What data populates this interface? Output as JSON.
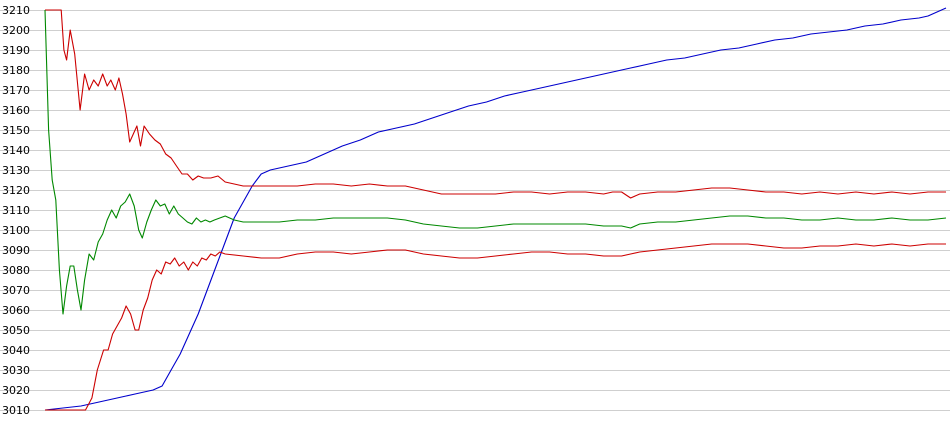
{
  "chart_data": {
    "type": "line",
    "title": "",
    "xlabel": "",
    "ylabel": "",
    "ylim": [
      3010,
      3210
    ],
    "xlim": [
      0,
      100
    ],
    "yticks": [
      3010,
      3020,
      3030,
      3040,
      3050,
      3060,
      3070,
      3080,
      3090,
      3100,
      3110,
      3120,
      3130,
      3140,
      3150,
      3160,
      3170,
      3180,
      3190,
      3200,
      3210
    ],
    "grid": "horizontal",
    "legend": "none",
    "series": [
      {
        "color": "#0000cc",
        "points": [
          [
            0,
            3010
          ],
          [
            2,
            3011
          ],
          [
            4,
            3012
          ],
          [
            6,
            3014
          ],
          [
            8,
            3016
          ],
          [
            9,
            3017
          ],
          [
            10,
            3018
          ],
          [
            11,
            3019
          ],
          [
            12,
            3020
          ],
          [
            13,
            3022
          ],
          [
            14,
            3030
          ],
          [
            15,
            3038
          ],
          [
            16,
            3048
          ],
          [
            17,
            3058
          ],
          [
            18,
            3070
          ],
          [
            19,
            3082
          ],
          [
            20,
            3094
          ],
          [
            21,
            3106
          ],
          [
            22,
            3114
          ],
          [
            23,
            3122
          ],
          [
            24,
            3128
          ],
          [
            25,
            3130
          ],
          [
            27,
            3132
          ],
          [
            29,
            3134
          ],
          [
            31,
            3138
          ],
          [
            33,
            3142
          ],
          [
            35,
            3145
          ],
          [
            37,
            3149
          ],
          [
            39,
            3151
          ],
          [
            41,
            3153
          ],
          [
            43,
            3156
          ],
          [
            45,
            3159
          ],
          [
            47,
            3162
          ],
          [
            49,
            3164
          ],
          [
            51,
            3167
          ],
          [
            53,
            3169
          ],
          [
            55,
            3171
          ],
          [
            57,
            3173
          ],
          [
            59,
            3175
          ],
          [
            61,
            3177
          ],
          [
            63,
            3179
          ],
          [
            65,
            3181
          ],
          [
            67,
            3183
          ],
          [
            69,
            3185
          ],
          [
            71,
            3186
          ],
          [
            73,
            3188
          ],
          [
            75,
            3190
          ],
          [
            77,
            3191
          ],
          [
            79,
            3193
          ],
          [
            81,
            3195
          ],
          [
            83,
            3196
          ],
          [
            85,
            3198
          ],
          [
            87,
            3199
          ],
          [
            89,
            3200
          ],
          [
            91,
            3202
          ],
          [
            93,
            3203
          ],
          [
            95,
            3205
          ],
          [
            97,
            3206
          ],
          [
            98,
            3207
          ],
          [
            99,
            3209
          ],
          [
            100,
            3211
          ]
        ]
      },
      {
        "color": "#cc0000",
        "points": [
          [
            0,
            3210
          ],
          [
            1,
            3210
          ],
          [
            1.8,
            3210
          ],
          [
            2.1,
            3190
          ],
          [
            2.4,
            3185
          ],
          [
            2.8,
            3200
          ],
          [
            3.3,
            3188
          ],
          [
            3.9,
            3160
          ],
          [
            4.4,
            3178
          ],
          [
            4.9,
            3170
          ],
          [
            5.4,
            3175
          ],
          [
            5.9,
            3172
          ],
          [
            6.4,
            3178
          ],
          [
            6.9,
            3172
          ],
          [
            7.3,
            3175
          ],
          [
            7.8,
            3170
          ],
          [
            8.2,
            3176
          ],
          [
            8.6,
            3168
          ],
          [
            9,
            3158
          ],
          [
            9.4,
            3144
          ],
          [
            9.8,
            3148
          ],
          [
            10.2,
            3152
          ],
          [
            10.6,
            3142
          ],
          [
            11,
            3152
          ],
          [
            11.6,
            3148
          ],
          [
            12.2,
            3145
          ],
          [
            12.8,
            3143
          ],
          [
            13.4,
            3138
          ],
          [
            14,
            3136
          ],
          [
            14.6,
            3132
          ],
          [
            15.2,
            3128
          ],
          [
            15.8,
            3128
          ],
          [
            16.4,
            3125
          ],
          [
            17,
            3127
          ],
          [
            17.6,
            3126
          ],
          [
            18.4,
            3126
          ],
          [
            19.2,
            3127
          ],
          [
            20,
            3124
          ],
          [
            21,
            3123
          ],
          [
            22,
            3122
          ],
          [
            24,
            3122
          ],
          [
            26,
            3122
          ],
          [
            28,
            3122
          ],
          [
            30,
            3123
          ],
          [
            32,
            3123
          ],
          [
            34,
            3122
          ],
          [
            36,
            3123
          ],
          [
            38,
            3122
          ],
          [
            40,
            3122
          ],
          [
            42,
            3120
          ],
          [
            44,
            3118
          ],
          [
            46,
            3118
          ],
          [
            48,
            3118
          ],
          [
            50,
            3118
          ],
          [
            52,
            3119
          ],
          [
            54,
            3119
          ],
          [
            56,
            3118
          ],
          [
            58,
            3119
          ],
          [
            60,
            3119
          ],
          [
            62,
            3118
          ],
          [
            63,
            3119
          ],
          [
            64,
            3119
          ],
          [
            65,
            3116
          ],
          [
            66,
            3118
          ],
          [
            68,
            3119
          ],
          [
            70,
            3119
          ],
          [
            72,
            3120
          ],
          [
            74,
            3121
          ],
          [
            76,
            3121
          ],
          [
            78,
            3120
          ],
          [
            80,
            3119
          ],
          [
            82,
            3119
          ],
          [
            84,
            3118
          ],
          [
            86,
            3119
          ],
          [
            88,
            3118
          ],
          [
            90,
            3119
          ],
          [
            92,
            3118
          ],
          [
            94,
            3119
          ],
          [
            96,
            3118
          ],
          [
            98,
            3119
          ],
          [
            100,
            3119
          ]
        ]
      },
      {
        "color": "#008800",
        "points": [
          [
            0,
            3210
          ],
          [
            0.4,
            3150
          ],
          [
            0.8,
            3125
          ],
          [
            1.2,
            3115
          ],
          [
            1.6,
            3080
          ],
          [
            2,
            3058
          ],
          [
            2.4,
            3072
          ],
          [
            2.8,
            3082
          ],
          [
            3.2,
            3082
          ],
          [
            3.6,
            3070
          ],
          [
            4,
            3060
          ],
          [
            4.4,
            3075
          ],
          [
            4.9,
            3088
          ],
          [
            5.4,
            3085
          ],
          [
            5.9,
            3094
          ],
          [
            6.4,
            3098
          ],
          [
            6.9,
            3105
          ],
          [
            7.4,
            3110
          ],
          [
            7.9,
            3106
          ],
          [
            8.4,
            3112
          ],
          [
            8.9,
            3114
          ],
          [
            9.4,
            3118
          ],
          [
            9.9,
            3112
          ],
          [
            10.4,
            3100
          ],
          [
            10.8,
            3096
          ],
          [
            11.3,
            3104
          ],
          [
            11.8,
            3110
          ],
          [
            12.3,
            3115
          ],
          [
            12.8,
            3112
          ],
          [
            13.3,
            3113
          ],
          [
            13.8,
            3108
          ],
          [
            14.3,
            3112
          ],
          [
            14.8,
            3108
          ],
          [
            15.3,
            3106
          ],
          [
            15.8,
            3104
          ],
          [
            16.3,
            3103
          ],
          [
            16.8,
            3106
          ],
          [
            17.3,
            3104
          ],
          [
            17.8,
            3105
          ],
          [
            18.3,
            3104
          ],
          [
            18.8,
            3105
          ],
          [
            19.4,
            3106
          ],
          [
            20,
            3107
          ],
          [
            21,
            3105
          ],
          [
            22,
            3104
          ],
          [
            24,
            3104
          ],
          [
            26,
            3104
          ],
          [
            28,
            3105
          ],
          [
            30,
            3105
          ],
          [
            32,
            3106
          ],
          [
            34,
            3106
          ],
          [
            36,
            3106
          ],
          [
            38,
            3106
          ],
          [
            40,
            3105
          ],
          [
            42,
            3103
          ],
          [
            44,
            3102
          ],
          [
            46,
            3101
          ],
          [
            48,
            3101
          ],
          [
            50,
            3102
          ],
          [
            52,
            3103
          ],
          [
            54,
            3103
          ],
          [
            56,
            3103
          ],
          [
            58,
            3103
          ],
          [
            60,
            3103
          ],
          [
            62,
            3102
          ],
          [
            64,
            3102
          ],
          [
            65,
            3101
          ],
          [
            66,
            3103
          ],
          [
            68,
            3104
          ],
          [
            70,
            3104
          ],
          [
            72,
            3105
          ],
          [
            74,
            3106
          ],
          [
            76,
            3107
          ],
          [
            78,
            3107
          ],
          [
            80,
            3106
          ],
          [
            82,
            3106
          ],
          [
            84,
            3105
          ],
          [
            86,
            3105
          ],
          [
            88,
            3106
          ],
          [
            90,
            3105
          ],
          [
            92,
            3105
          ],
          [
            94,
            3106
          ],
          [
            96,
            3105
          ],
          [
            98,
            3105
          ],
          [
            100,
            3106
          ]
        ]
      },
      {
        "color": "#cc0000",
        "points": [
          [
            0,
            3010
          ],
          [
            1,
            3010
          ],
          [
            3,
            3010
          ],
          [
            4.5,
            3010
          ],
          [
            5.2,
            3016
          ],
          [
            5.8,
            3030
          ],
          [
            6.5,
            3040
          ],
          [
            7,
            3040
          ],
          [
            7.5,
            3048
          ],
          [
            8,
            3052
          ],
          [
            8.5,
            3056
          ],
          [
            9,
            3062
          ],
          [
            9.5,
            3058
          ],
          [
            10,
            3050
          ],
          [
            10.4,
            3050
          ],
          [
            10.9,
            3060
          ],
          [
            11.4,
            3066
          ],
          [
            11.9,
            3075
          ],
          [
            12.4,
            3080
          ],
          [
            12.9,
            3078
          ],
          [
            13.4,
            3084
          ],
          [
            13.9,
            3083
          ],
          [
            14.4,
            3086
          ],
          [
            14.9,
            3082
          ],
          [
            15.4,
            3084
          ],
          [
            15.9,
            3080
          ],
          [
            16.4,
            3084
          ],
          [
            16.9,
            3082
          ],
          [
            17.4,
            3086
          ],
          [
            17.9,
            3085
          ],
          [
            18.4,
            3088
          ],
          [
            18.9,
            3087
          ],
          [
            19.4,
            3089
          ],
          [
            20,
            3088
          ],
          [
            22,
            3087
          ],
          [
            24,
            3086
          ],
          [
            26,
            3086
          ],
          [
            28,
            3088
          ],
          [
            30,
            3089
          ],
          [
            32,
            3089
          ],
          [
            34,
            3088
          ],
          [
            36,
            3089
          ],
          [
            38,
            3090
          ],
          [
            40,
            3090
          ],
          [
            42,
            3088
          ],
          [
            44,
            3087
          ],
          [
            46,
            3086
          ],
          [
            48,
            3086
          ],
          [
            50,
            3087
          ],
          [
            52,
            3088
          ],
          [
            54,
            3089
          ],
          [
            56,
            3089
          ],
          [
            58,
            3088
          ],
          [
            60,
            3088
          ],
          [
            62,
            3087
          ],
          [
            64,
            3087
          ],
          [
            65,
            3088
          ],
          [
            66,
            3089
          ],
          [
            68,
            3090
          ],
          [
            70,
            3091
          ],
          [
            72,
            3092
          ],
          [
            74,
            3093
          ],
          [
            76,
            3093
          ],
          [
            78,
            3093
          ],
          [
            80,
            3092
          ],
          [
            82,
            3091
          ],
          [
            84,
            3091
          ],
          [
            86,
            3092
          ],
          [
            88,
            3092
          ],
          [
            90,
            3093
          ],
          [
            92,
            3092
          ],
          [
            94,
            3093
          ],
          [
            96,
            3092
          ],
          [
            98,
            3093
          ],
          [
            100,
            3093
          ]
        ]
      }
    ]
  }
}
